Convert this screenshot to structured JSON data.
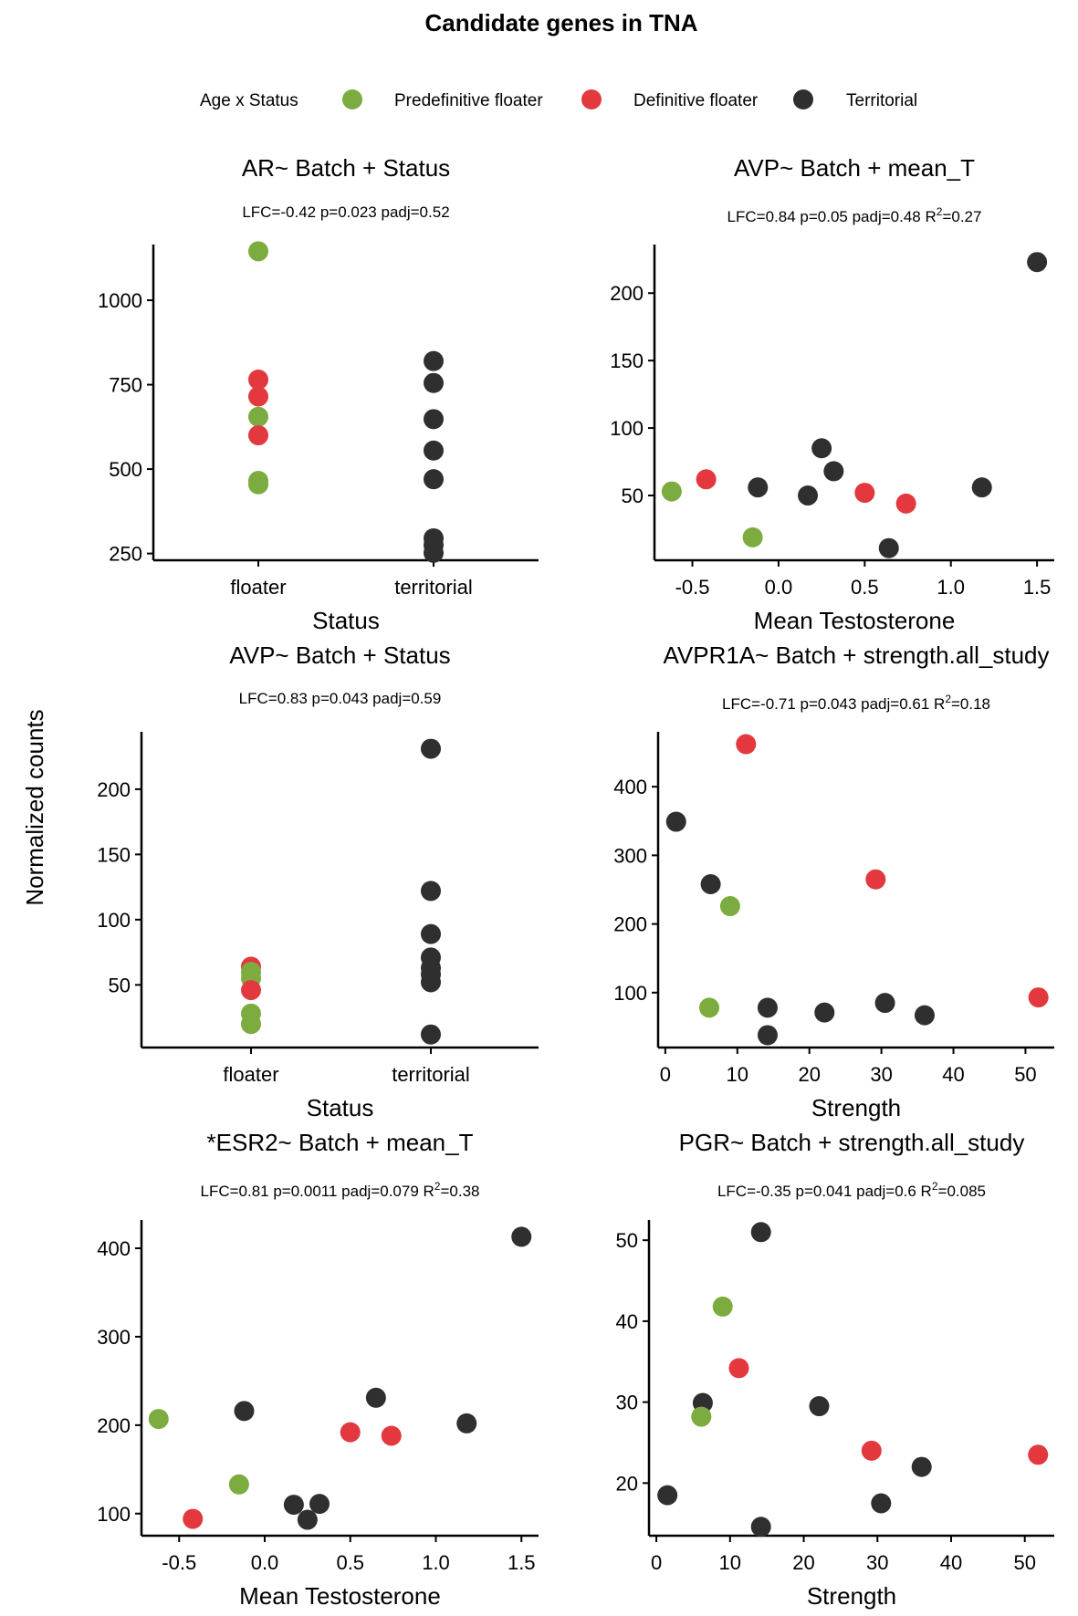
{
  "figure": {
    "title": "Candidate genes in TNA",
    "ylabel": "Normalized counts"
  },
  "legend": {
    "title": "Age x Status",
    "items": [
      {
        "label": "Predefinitive floater",
        "color": "#7cac3f"
      },
      {
        "label": "Definitive floater",
        "color": "#e2383e"
      },
      {
        "label": "Territorial",
        "color": "#2f2f2f"
      }
    ]
  },
  "colors": {
    "Predefinitive floater": "#7cac3f",
    "Definitive floater": "#e2383e",
    "Territorial": "#2f2f2f"
  },
  "chart_data": [
    {
      "type": "scatter",
      "title": "AR~ Batch + Status",
      "subtitle": "LFC=-0.42 p=0.023 padj=0.52",
      "xlabel": "Status",
      "x_type": "categorical",
      "categories": [
        "floater",
        "territorial"
      ],
      "ylim": [
        230,
        1165
      ],
      "yticks": [
        250,
        500,
        750,
        1000
      ],
      "points": [
        {
          "x": "floater",
          "y": 1145,
          "group": "Predefinitive floater"
        },
        {
          "x": "floater",
          "y": 765,
          "group": "Definitive floater"
        },
        {
          "x": "floater",
          "y": 715,
          "group": "Definitive floater"
        },
        {
          "x": "floater",
          "y": 655,
          "group": "Predefinitive floater"
        },
        {
          "x": "floater",
          "y": 600,
          "group": "Definitive floater"
        },
        {
          "x": "floater",
          "y": 465,
          "group": "Predefinitive floater"
        },
        {
          "x": "floater",
          "y": 455,
          "group": "Predefinitive floater"
        },
        {
          "x": "territorial",
          "y": 820,
          "group": "Territorial"
        },
        {
          "x": "territorial",
          "y": 755,
          "group": "Territorial"
        },
        {
          "x": "territorial",
          "y": 648,
          "group": "Territorial"
        },
        {
          "x": "territorial",
          "y": 555,
          "group": "Territorial"
        },
        {
          "x": "territorial",
          "y": 470,
          "group": "Territorial"
        },
        {
          "x": "territorial",
          "y": 295,
          "group": "Territorial"
        },
        {
          "x": "territorial",
          "y": 275,
          "group": "Territorial"
        },
        {
          "x": "territorial",
          "y": 252,
          "group": "Territorial"
        }
      ]
    },
    {
      "type": "scatter",
      "title": "AVP~ Batch + mean_T",
      "subtitle": "LFC=0.84 p=0.05 padj=0.48 R²=0.27",
      "xlabel": "Mean Testosterone",
      "x_type": "numeric",
      "xlim": [
        -0.72,
        1.6
      ],
      "xticks": [
        -0.5,
        0.0,
        0.5,
        1.0,
        1.5
      ],
      "xticklabels": [
        "-0.5",
        "0.0",
        "0.5",
        "1.0",
        "1.5"
      ],
      "ylim": [
        2,
        236
      ],
      "yticks": [
        50,
        100,
        150,
        200
      ],
      "points": [
        {
          "x": 1.5,
          "y": 223,
          "group": "Territorial"
        },
        {
          "x": 0.25,
          "y": 85,
          "group": "Territorial"
        },
        {
          "x": 0.32,
          "y": 68,
          "group": "Territorial"
        },
        {
          "x": -0.42,
          "y": 62,
          "group": "Definitive floater"
        },
        {
          "x": -0.12,
          "y": 56,
          "group": "Territorial"
        },
        {
          "x": 1.18,
          "y": 56,
          "group": "Territorial"
        },
        {
          "x": -0.62,
          "y": 53,
          "group": "Predefinitive floater"
        },
        {
          "x": 0.5,
          "y": 52,
          "group": "Definitive floater"
        },
        {
          "x": 0.17,
          "y": 50,
          "group": "Territorial"
        },
        {
          "x": 0.74,
          "y": 44,
          "group": "Definitive floater"
        },
        {
          "x": -0.15,
          "y": 19,
          "group": "Predefinitive floater"
        },
        {
          "x": 0.64,
          "y": 11,
          "group": "Territorial"
        }
      ]
    },
    {
      "type": "scatter",
      "title": "AVP~ Batch + Status",
      "subtitle": "LFC=0.83 p=0.043 padj=0.59",
      "xlabel": "Status",
      "x_type": "categorical",
      "categories": [
        "floater",
        "territorial"
      ],
      "ylim": [
        2,
        244
      ],
      "yticks": [
        50,
        100,
        150,
        200
      ],
      "points": [
        {
          "x": "floater",
          "y": 64,
          "group": "Definitive floater"
        },
        {
          "x": "floater",
          "y": 60,
          "group": "Predefinitive floater"
        },
        {
          "x": "floater",
          "y": 55,
          "group": "Predefinitive floater"
        },
        {
          "x": "floater",
          "y": 46,
          "group": "Definitive floater"
        },
        {
          "x": "floater",
          "y": 28,
          "group": "Predefinitive floater"
        },
        {
          "x": "floater",
          "y": 20,
          "group": "Predefinitive floater"
        },
        {
          "x": "territorial",
          "y": 231,
          "group": "Territorial"
        },
        {
          "x": "territorial",
          "y": 122,
          "group": "Territorial"
        },
        {
          "x": "territorial",
          "y": 89,
          "group": "Territorial"
        },
        {
          "x": "territorial",
          "y": 71,
          "group": "Territorial"
        },
        {
          "x": "territorial",
          "y": 63,
          "group": "Territorial"
        },
        {
          "x": "territorial",
          "y": 58,
          "group": "Territorial"
        },
        {
          "x": "territorial",
          "y": 52,
          "group": "Territorial"
        },
        {
          "x": "territorial",
          "y": 12,
          "group": "Territorial"
        }
      ]
    },
    {
      "type": "scatter",
      "title": "AVPR1A~ Batch + strength.all_study",
      "subtitle": "LFC=-0.71 p=0.043 padj=0.61 R²=0.18",
      "xlabel": "Strength",
      "x_type": "numeric",
      "xlim": [
        -1,
        54
      ],
      "xticks": [
        0,
        10,
        20,
        30,
        40,
        50
      ],
      "xticklabels": [
        "0",
        "10",
        "20",
        "30",
        "40",
        "50"
      ],
      "ylim": [
        20,
        480
      ],
      "yticks": [
        100,
        200,
        300,
        400
      ],
      "points": [
        {
          "x": 11.2,
          "y": 462,
          "group": "Definitive floater"
        },
        {
          "x": 1.5,
          "y": 349,
          "group": "Territorial"
        },
        {
          "x": 29.2,
          "y": 265,
          "group": "Definitive floater"
        },
        {
          "x": 6.3,
          "y": 258,
          "group": "Territorial"
        },
        {
          "x": 9.0,
          "y": 226,
          "group": "Predefinitive floater"
        },
        {
          "x": 51.8,
          "y": 93,
          "group": "Definitive floater"
        },
        {
          "x": 30.5,
          "y": 85,
          "group": "Territorial"
        },
        {
          "x": 14.2,
          "y": 78,
          "group": "Territorial"
        },
        {
          "x": 6.1,
          "y": 78,
          "group": "Predefinitive floater"
        },
        {
          "x": 22.1,
          "y": 71,
          "group": "Territorial"
        },
        {
          "x": 36.0,
          "y": 67,
          "group": "Territorial"
        },
        {
          "x": 14.2,
          "y": 38,
          "group": "Territorial"
        }
      ]
    },
    {
      "type": "scatter",
      "title": "*ESR2~ Batch + mean_T",
      "subtitle": "LFC=0.81 p=0.0011 padj=0.079 R²=0.38",
      "xlabel": "Mean Testosterone",
      "x_type": "numeric",
      "xlim": [
        -0.72,
        1.6
      ],
      "xticks": [
        -0.5,
        0.0,
        0.5,
        1.0,
        1.5
      ],
      "xticklabels": [
        "-0.5",
        "0.0",
        "0.5",
        "1.0",
        "1.5"
      ],
      "ylim": [
        75,
        432
      ],
      "yticks": [
        100,
        200,
        300,
        400
      ],
      "points": [
        {
          "x": 1.5,
          "y": 413,
          "group": "Territorial"
        },
        {
          "x": 0.65,
          "y": 231,
          "group": "Territorial"
        },
        {
          "x": -0.12,
          "y": 216,
          "group": "Territorial"
        },
        {
          "x": -0.62,
          "y": 207,
          "group": "Predefinitive floater"
        },
        {
          "x": 1.18,
          "y": 202,
          "group": "Territorial"
        },
        {
          "x": 0.5,
          "y": 192,
          "group": "Definitive floater"
        },
        {
          "x": 0.74,
          "y": 188,
          "group": "Definitive floater"
        },
        {
          "x": -0.15,
          "y": 133,
          "group": "Predefinitive floater"
        },
        {
          "x": 0.32,
          "y": 111,
          "group": "Territorial"
        },
        {
          "x": 0.17,
          "y": 110,
          "group": "Territorial"
        },
        {
          "x": -0.42,
          "y": 94,
          "group": "Definitive floater"
        },
        {
          "x": 0.25,
          "y": 93,
          "group": "Territorial"
        }
      ]
    },
    {
      "type": "scatter",
      "title": "PGR~ Batch + strength.all_study",
      "subtitle": "LFC=-0.35 p=0.041 padj=0.6 R²=0.085",
      "xlabel": "Strength",
      "x_type": "numeric",
      "xlim": [
        -1,
        54
      ],
      "xticks": [
        0,
        10,
        20,
        30,
        40,
        50
      ],
      "xticklabels": [
        "0",
        "10",
        "20",
        "30",
        "40",
        "50"
      ],
      "ylim": [
        13.5,
        52.5
      ],
      "yticks": [
        20,
        30,
        40,
        50
      ],
      "points": [
        {
          "x": 14.2,
          "y": 51,
          "group": "Territorial"
        },
        {
          "x": 9.0,
          "y": 41.8,
          "group": "Predefinitive floater"
        },
        {
          "x": 11.2,
          "y": 34.2,
          "group": "Definitive floater"
        },
        {
          "x": 6.3,
          "y": 29.9,
          "group": "Territorial"
        },
        {
          "x": 22.1,
          "y": 29.5,
          "group": "Territorial"
        },
        {
          "x": 6.1,
          "y": 28.2,
          "group": "Predefinitive floater"
        },
        {
          "x": 29.2,
          "y": 24.0,
          "group": "Definitive floater"
        },
        {
          "x": 51.8,
          "y": 23.5,
          "group": "Definitive floater"
        },
        {
          "x": 36.0,
          "y": 22.0,
          "group": "Territorial"
        },
        {
          "x": 1.5,
          "y": 18.5,
          "group": "Territorial"
        },
        {
          "x": 30.5,
          "y": 17.5,
          "group": "Territorial"
        },
        {
          "x": 14.2,
          "y": 14.6,
          "group": "Territorial"
        }
      ]
    }
  ]
}
